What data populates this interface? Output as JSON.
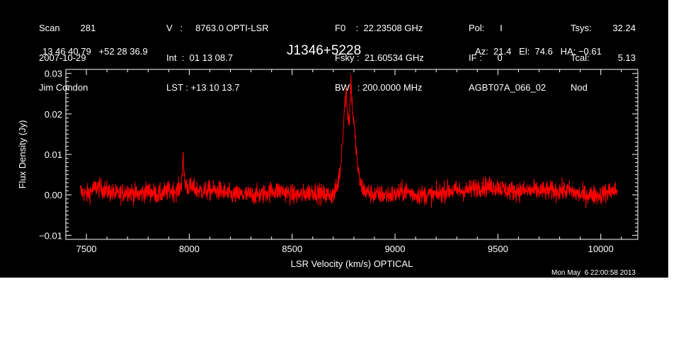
{
  "header": {
    "col1": [
      "Scan        281",
      "2007-10-29",
      "Jim Condon"
    ],
    "col2": [
      "V   :     8763.0 OPTI-LSR",
      "Int  :  01 13 08.7",
      "LST : +13 10 13.7"
    ],
    "col3": [
      "F0    :  22.23508 GHz",
      "Fsky :  21.60534 GHz",
      "BW   : 200.0000 MHz"
    ],
    "col4": [
      "Pol:      I",
      "IF :      0",
      "AGBT07A_066_02"
    ],
    "col5_labels": [
      "Tsys:",
      "Tcal:",
      "Nod"
    ],
    "col5_values": [
      "32.24",
      "5.13",
      ""
    ],
    "coords": "13 46 40.79   +52 28 36.9",
    "source": "J1346+5228",
    "pointing": "Az:  21.4   El:  74.6   HA: −0.61",
    "timestamp": "Mon May  6 22:00:58 2013"
  },
  "colors": {
    "background": "#000000",
    "axes": "#ffffff",
    "spectrum": "#ff0000"
  },
  "chart_data": {
    "type": "line",
    "title": "J1346+5228",
    "xlabel": "LSR Velocity (km/s) OPTICAL",
    "ylabel": "Flux Density (Jy)",
    "xlim": [
      7400,
      10180
    ],
    "ylim": [
      -0.011,
      0.031
    ],
    "xticks": [
      7500,
      8000,
      8500,
      9000,
      9500,
      10000
    ],
    "xtick_labels": [
      "7500",
      "8000",
      "8500",
      "9000",
      "9500",
      "10000"
    ],
    "yticks": [
      -0.01,
      0.0,
      0.01,
      0.02,
      0.03
    ],
    "ytick_labels": [
      "−0.01",
      "0.00",
      "0.01",
      "0.02",
      "0.03"
    ],
    "series": [
      {
        "color": "#ff0000",
        "x": [
          7470,
          7500,
          7550,
          7600,
          7650,
          7700,
          7750,
          7800,
          7850,
          7900,
          7940,
          7960,
          7970,
          7975,
          7980,
          7990,
          8000,
          8050,
          8100,
          8150,
          8200,
          8250,
          8300,
          8350,
          8400,
          8450,
          8500,
          8550,
          8600,
          8650,
          8700,
          8720,
          8735,
          8745,
          8755,
          8762,
          8770,
          8778,
          8785,
          8792,
          8800,
          8810,
          8820,
          8830,
          8850,
          8900,
          8950,
          9000,
          9050,
          9100,
          9150,
          9200,
          9250,
          9300,
          9350,
          9400,
          9450,
          9500,
          9550,
          9600,
          9650,
          9700,
          9750,
          9800,
          9850,
          9900,
          9950,
          10000,
          10050,
          10080
        ],
        "y": [
          0.001,
          0.0,
          0.002,
          0.001,
          0.0,
          0.001,
          0.0,
          0.001,
          0.0,
          0.001,
          0.001,
          0.002,
          0.009,
          0.005,
          0.003,
          0.002,
          0.002,
          0.001,
          0.001,
          0.001,
          0.0,
          0.0,
          0.0,
          0.0,
          0.001,
          0.001,
          0.0,
          0.0,
          0.001,
          0.0,
          0.0,
          0.002,
          0.007,
          0.014,
          0.022,
          0.026,
          0.02,
          0.018,
          0.029,
          0.022,
          0.018,
          0.012,
          0.006,
          0.003,
          0.001,
          0.0,
          0.0,
          0.0,
          0.001,
          0.0,
          0.0,
          0.0,
          0.001,
          0.001,
          0.001,
          0.002,
          0.002,
          0.002,
          0.001,
          0.001,
          0.001,
          0.001,
          0.001,
          0.001,
          0.001,
          0.0,
          0.0,
          0.0,
          0.001,
          0.001
        ]
      }
    ],
    "noise_rms": 0.0017,
    "grid": false,
    "legend": "none"
  }
}
